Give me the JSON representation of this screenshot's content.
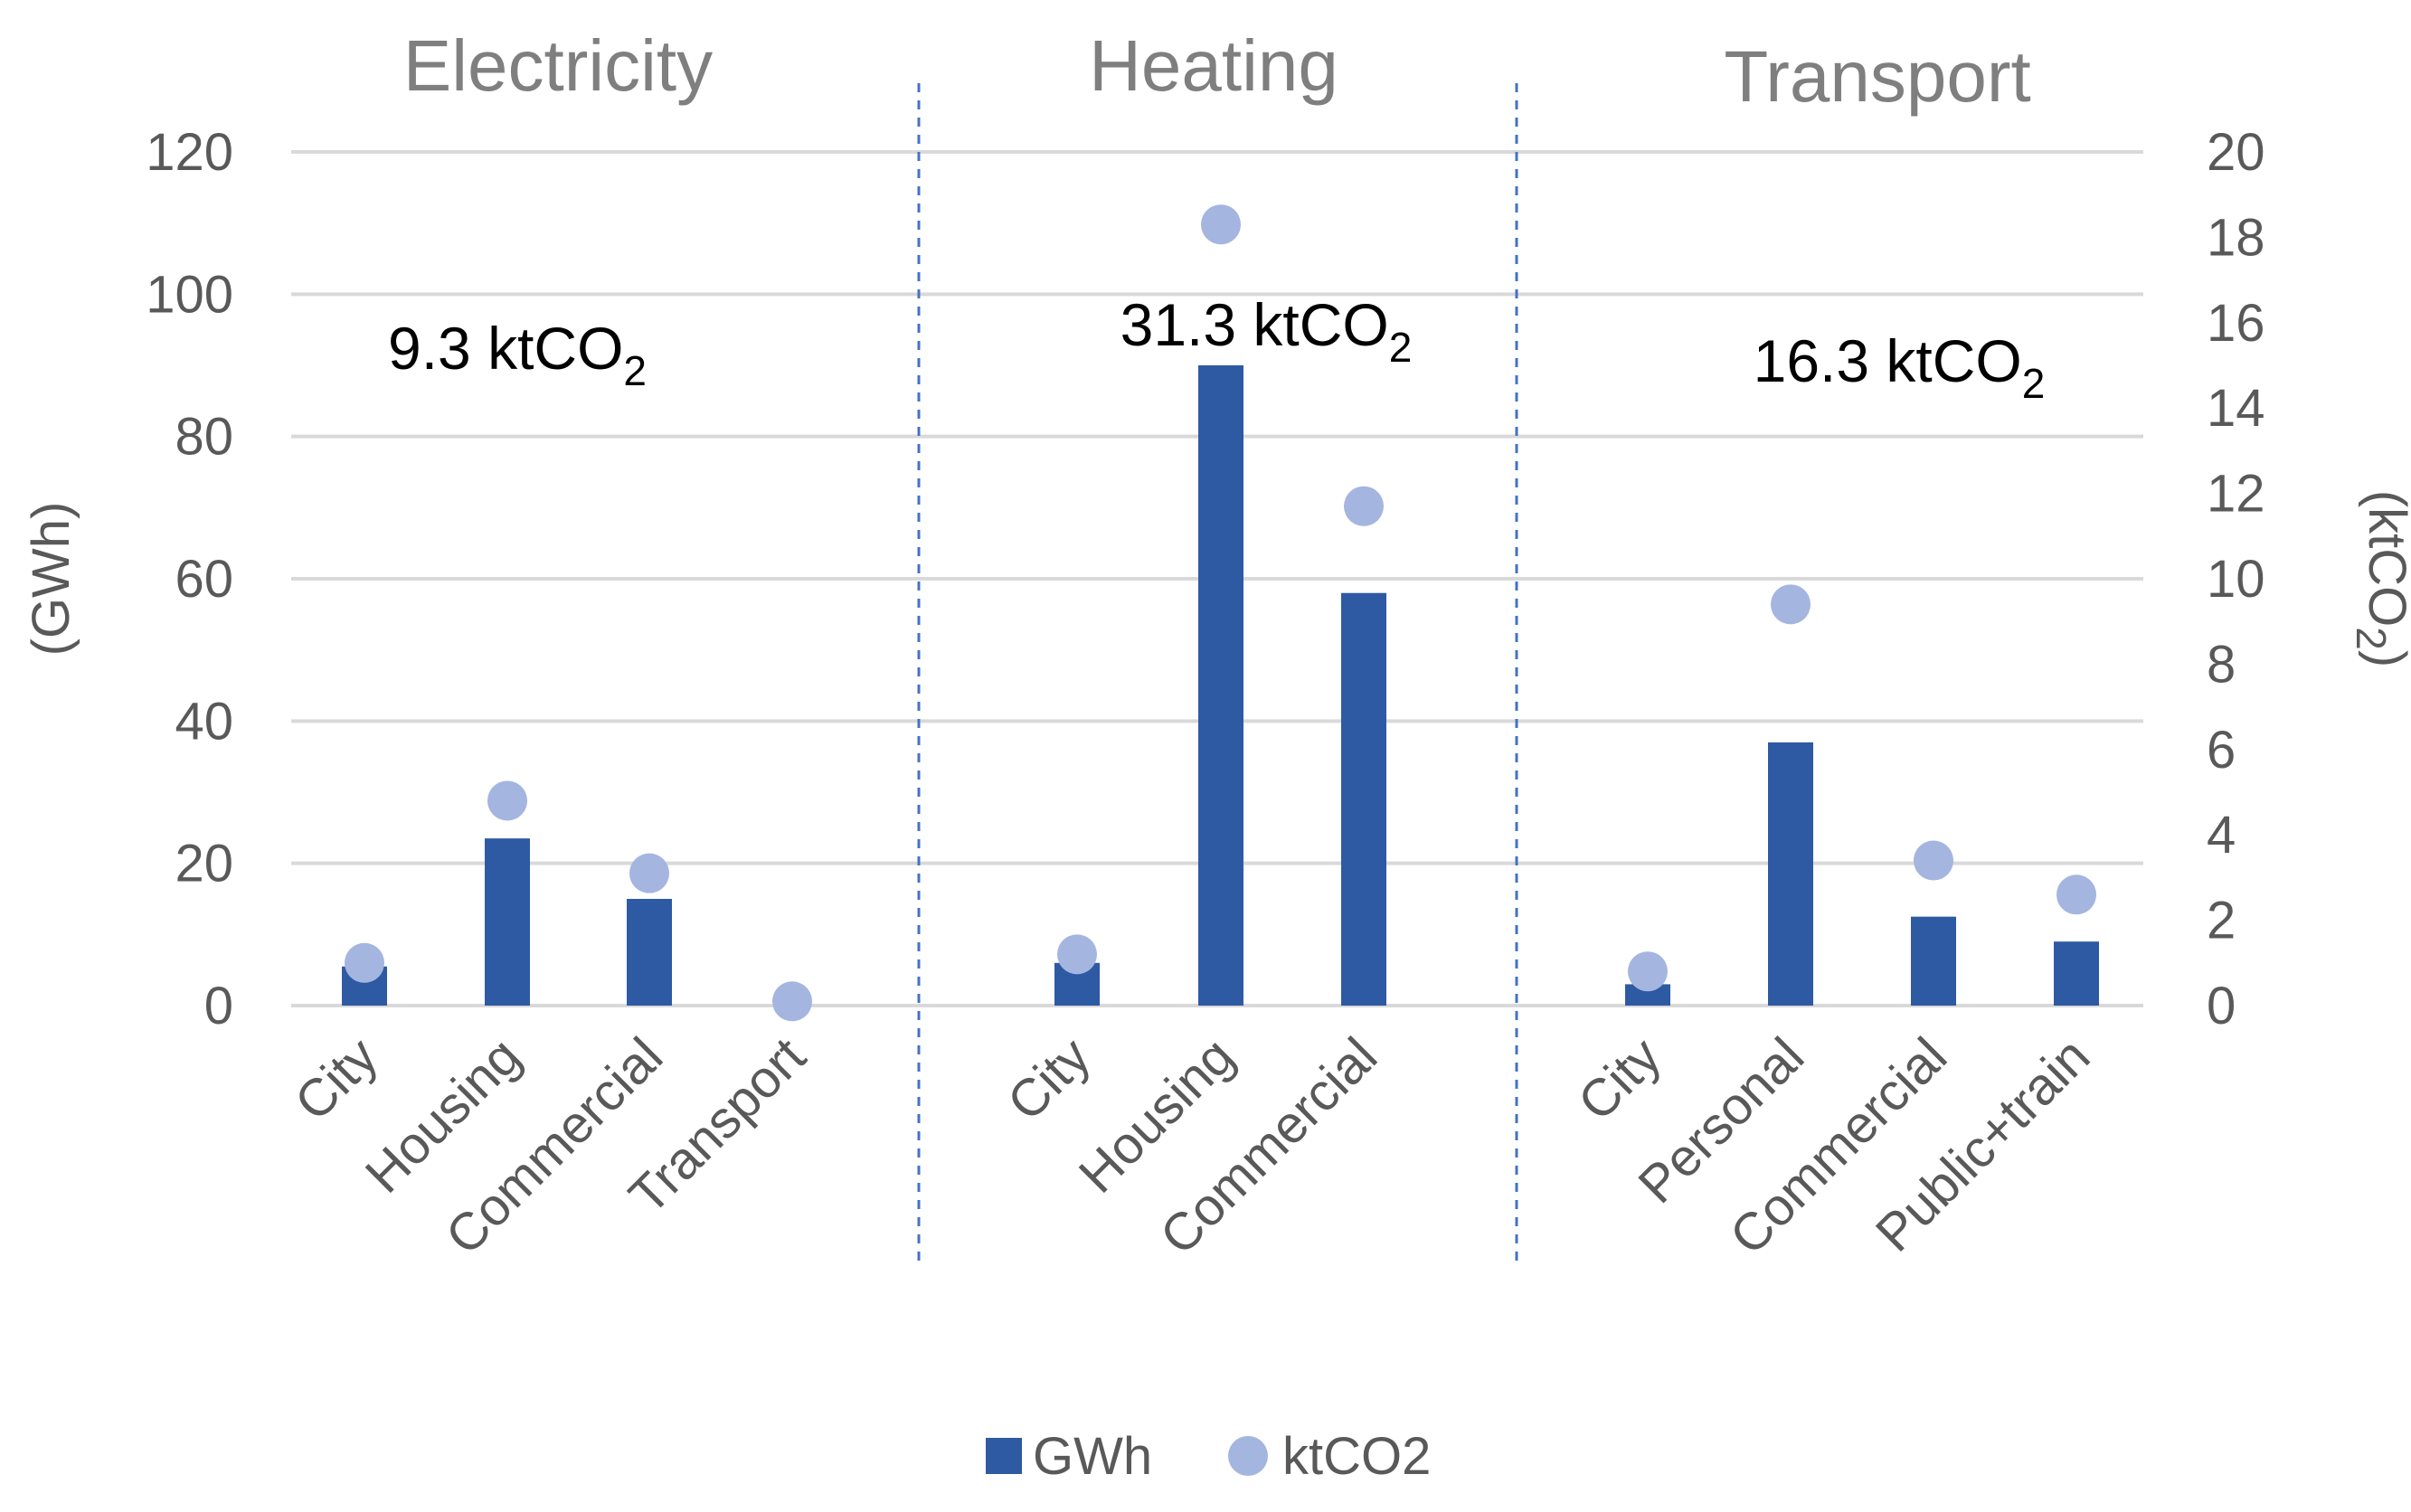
{
  "chart_data": {
    "type": "bar",
    "groups": [
      {
        "title": "Electricity",
        "total_value": "9.3",
        "total_unit": "ktCO",
        "total_subscript": "2",
        "categories": [
          "City",
          "Housing",
          "Commercial",
          "Transport"
        ],
        "gwh": [
          5.5,
          23.5,
          15,
          0
        ],
        "ktco2": [
          1.0,
          4.8,
          3.1,
          0.1
        ]
      },
      {
        "title": "Heating",
        "total_value": "31.3",
        "total_unit": "ktCO",
        "total_subscript": "2",
        "categories": [
          "City",
          "Housing",
          "Commercial"
        ],
        "gwh": [
          6,
          90,
          58
        ],
        "ktco2": [
          1.2,
          18.3,
          11.7
        ]
      },
      {
        "title": "Transport",
        "total_value": "16.3",
        "total_unit": "ktCO",
        "total_subscript": "2",
        "categories": [
          "City",
          "Personal",
          "Commercial",
          "Public+train"
        ],
        "gwh": [
          3,
          37,
          12.5,
          9
        ],
        "ktco2": [
          0.8,
          9.4,
          3.4,
          2.6
        ]
      }
    ],
    "series": [
      {
        "name": "GWh",
        "kind": "bar",
        "axis": "left",
        "color": "#2e5aa3"
      },
      {
        "name": "ktCO2",
        "kind": "scatter",
        "axis": "right",
        "color": "#a4b5e0"
      }
    ],
    "y_left": {
      "label_main": "(GWh)",
      "range": [
        0,
        120
      ],
      "ticks": [
        "0",
        "20",
        "40",
        "60",
        "80",
        "100",
        "120"
      ]
    },
    "y_right": {
      "label_main": "(ktCO",
      "label_sub": "2",
      "label_close": ")",
      "range": [
        0,
        20
      ],
      "ticks": [
        "0",
        "2",
        "4",
        "6",
        "8",
        "10",
        "12",
        "14",
        "16",
        "18",
        "20"
      ]
    },
    "grid": true,
    "legend": "bottom-center"
  }
}
